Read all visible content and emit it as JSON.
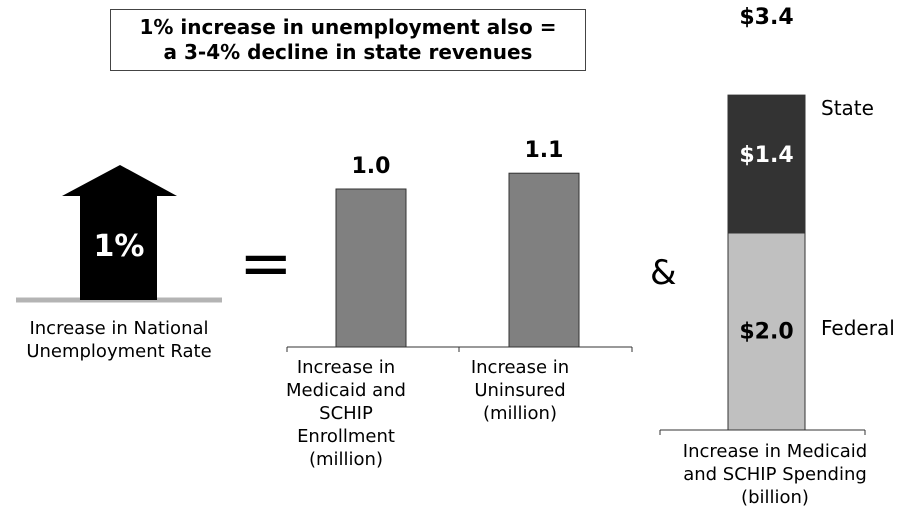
{
  "callout": {
    "text": "1% increase in unemployment also =\na 3-4% decline in state revenues"
  },
  "arrow": {
    "value_label": "1%",
    "caption": "Increase in National\nUnemployment Rate"
  },
  "operators": {
    "equals": "=",
    "and": "&"
  },
  "colors": {
    "arrow": "#000000",
    "bar": "#808080",
    "state": "#333333",
    "federal": "#c0c0c0",
    "baseline": "#b4b4b4"
  },
  "chart_data": [
    {
      "type": "bar",
      "categories": [
        "Increase in\nMedicaid and\nSCHIP\nEnrollment\n(million)",
        "Increase in\nUninsured\n(million)"
      ],
      "values": [
        1.0,
        1.1
      ],
      "value_labels": [
        "1.0",
        "1.1"
      ],
      "title": "",
      "xlabel": "",
      "ylabel": ""
    },
    {
      "type": "bar",
      "stacked": true,
      "categories": [
        "Increase in Medicaid\nand SCHIP Spending\n(billion)"
      ],
      "series": [
        {
          "name": "Federal",
          "values": [
            2.0
          ],
          "value_label": "$2.0"
        },
        {
          "name": "State",
          "values": [
            1.4
          ],
          "value_label": "$1.4"
        }
      ],
      "total_label": "$3.4",
      "title": "",
      "xlabel": "",
      "ylabel": ""
    }
  ]
}
